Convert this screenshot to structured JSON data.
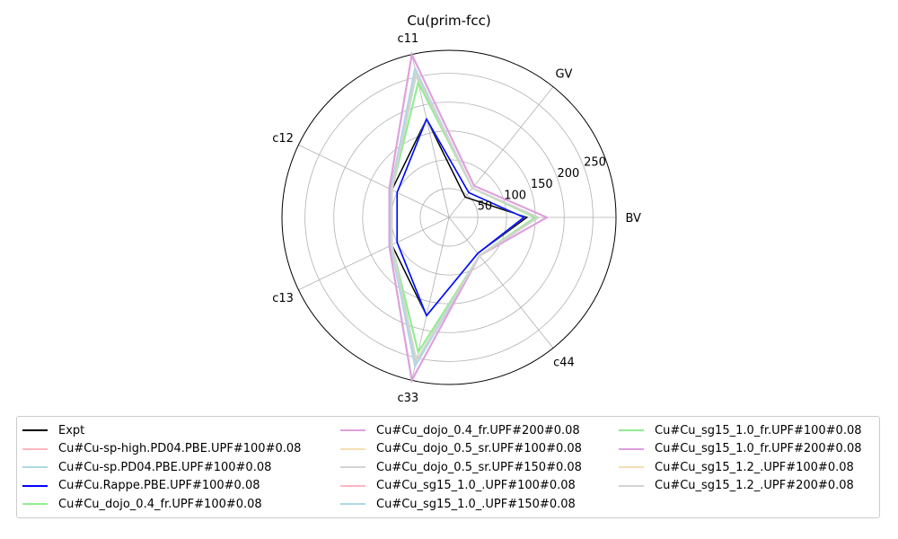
{
  "chart_data": {
    "type": "radar",
    "title": "Cu(prim-fcc)",
    "axes": [
      "BV",
      "GV",
      "c11",
      "c12",
      "c13",
      "c33",
      "c44"
    ],
    "radial_ticks": [
      50,
      100,
      150,
      200,
      250
    ],
    "rmax": 290,
    "grid": true,
    "legend_position": "bottom",
    "series": [
      {
        "name": "Expt",
        "color": "#000000",
        "values": [
          135,
          45,
          175,
          110,
          110,
          175,
          80
        ]
      },
      {
        "name": "Cu#Cu-sp-high.PD04.PBE.UPF#100#0.08",
        "color": "#ffb6c1",
        "values": [
          150,
          65,
          260,
          113,
          113,
          260,
          85
        ]
      },
      {
        "name": "Cu#Cu-sp.PD04.PBE.UPF#100#0.08",
        "color": "#add8e6",
        "values": [
          130,
          55,
          175,
          100,
          100,
          175,
          80
        ]
      },
      {
        "name": "Cu#Cu.Rappe.PBE.UPF#100#0.08",
        "color": "#0000ff",
        "values": [
          130,
          55,
          175,
          100,
          100,
          175,
          80
        ]
      },
      {
        "name": "Cu#Cu_dojo_0.4_fr.UPF#100#0.08",
        "color": "#90ee90",
        "values": [
          150,
          65,
          240,
          110,
          110,
          240,
          85
        ]
      },
      {
        "name": "Cu#Cu_dojo_0.4_fr.UPF#200#0.08",
        "color": "#dda0dd",
        "values": [
          170,
          70,
          290,
          115,
          115,
          290,
          85
        ]
      },
      {
        "name": "Cu#Cu_dojo_0.5_sr.UPF#100#0.08",
        "color": "#f5deb3",
        "values": [
          150,
          65,
          260,
          110,
          110,
          260,
          85
        ]
      },
      {
        "name": "Cu#Cu_dojo_0.5_sr.UPF#150#0.08",
        "color": "#d3d3d3",
        "values": [
          150,
          65,
          260,
          110,
          110,
          260,
          85
        ]
      },
      {
        "name": "Cu#Cu_sg15_1.0_.UPF#100#0.08",
        "color": "#ffb6c1",
        "values": [
          155,
          65,
          265,
          112,
          112,
          265,
          85
        ]
      },
      {
        "name": "Cu#Cu_sg15_1.0_.UPF#150#0.08",
        "color": "#add8e6",
        "values": [
          155,
          65,
          265,
          112,
          112,
          265,
          85
        ]
      },
      {
        "name": "Cu#Cu_sg15_1.0_fr.UPF#100#0.08",
        "color": "#90ee90",
        "values": [
          150,
          65,
          240,
          110,
          110,
          240,
          85
        ]
      },
      {
        "name": "Cu#Cu_sg15_1.0_fr.UPF#200#0.08",
        "color": "#dda0dd",
        "values": [
          170,
          70,
          290,
          115,
          115,
          290,
          85
        ]
      },
      {
        "name": "Cu#Cu_sg15_1.2_.UPF#100#0.08",
        "color": "#f5deb3",
        "values": [
          155,
          65,
          255,
          110,
          110,
          255,
          85
        ]
      },
      {
        "name": "Cu#Cu_sg15_1.2_.UPF#200#0.08",
        "color": "#d3d3d3",
        "values": [
          155,
          65,
          255,
          110,
          110,
          255,
          85
        ]
      }
    ]
  }
}
